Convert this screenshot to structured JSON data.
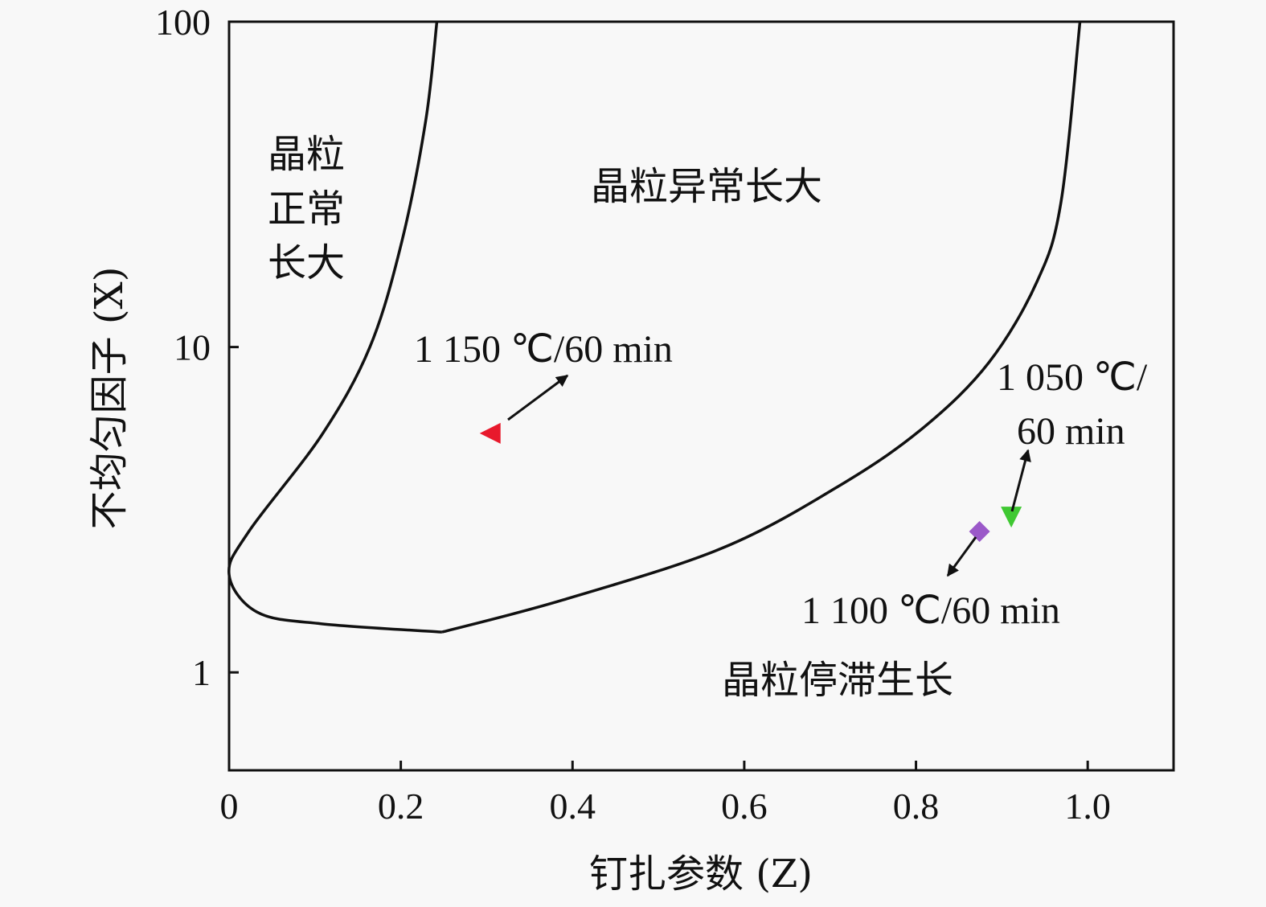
{
  "chart_data": {
    "type": "line",
    "title": "",
    "xlabel": "钉扎参数 (Z)",
    "ylabel": "不均匀因子 (X)",
    "xscale": "linear",
    "yscale": "log",
    "xlim": [
      0,
      1.1
    ],
    "ylim": [
      0.5,
      100
    ],
    "x_ticks": [
      0,
      0.2,
      0.4,
      0.6,
      0.8,
      1.0
    ],
    "x_tick_labels": [
      "0",
      "0.2",
      "0.4",
      "0.6",
      "0.8",
      "1.0"
    ],
    "y_ticks": [
      1,
      10,
      100
    ],
    "y_tick_labels": [
      "1",
      "10",
      "100"
    ],
    "grid": false,
    "series": [
      {
        "name": "normal-growth-boundary",
        "color": "#111111",
        "points": [
          [
            0.242,
            100
          ],
          [
            0.229,
            49.6
          ],
          [
            0.201,
            21
          ],
          [
            0.164,
            10
          ],
          [
            0.108,
            5.37
          ],
          [
            0.023,
            2.71
          ],
          [
            0.0,
            2.0
          ],
          [
            0.033,
            1.53
          ],
          [
            0.108,
            1.41
          ],
          [
            0.248,
            1.33
          ]
        ]
      },
      {
        "name": "abnormal-growth-boundary",
        "color": "#111111",
        "points": [
          [
            0.248,
            1.33
          ],
          [
            0.389,
            1.67
          ],
          [
            0.576,
            2.42
          ],
          [
            0.716,
            3.82
          ],
          [
            0.81,
            5.69
          ],
          [
            0.885,
            8.97
          ],
          [
            0.941,
            15.9
          ],
          [
            0.969,
            28
          ],
          [
            0.991,
            100
          ]
        ]
      }
    ],
    "markers": [
      {
        "name": "1150C-60min",
        "shape": "triangle-left",
        "color": "#e8192c",
        "x": 0.304,
        "y": 5.43
      },
      {
        "name": "1050C-60min",
        "shape": "triangle-down",
        "color": "#3fc832",
        "x": 0.911,
        "y": 3.0
      },
      {
        "name": "1100C-60min",
        "shape": "diamond",
        "color": "#9b59c9",
        "x": 0.874,
        "y": 2.71
      }
    ],
    "annotations": {
      "a1150": "1 150 ℃/60 min",
      "a1050_line1": "1 050 ℃/",
      "a1050_line2": "60 min",
      "a1100": "1 100 ℃/60 min"
    },
    "regions": {
      "normal_1": "晶粒",
      "normal_2": "正常",
      "normal_3": "长大",
      "abnormal": "晶粒异常长大",
      "stagnant": "晶粒停滞生长"
    }
  }
}
